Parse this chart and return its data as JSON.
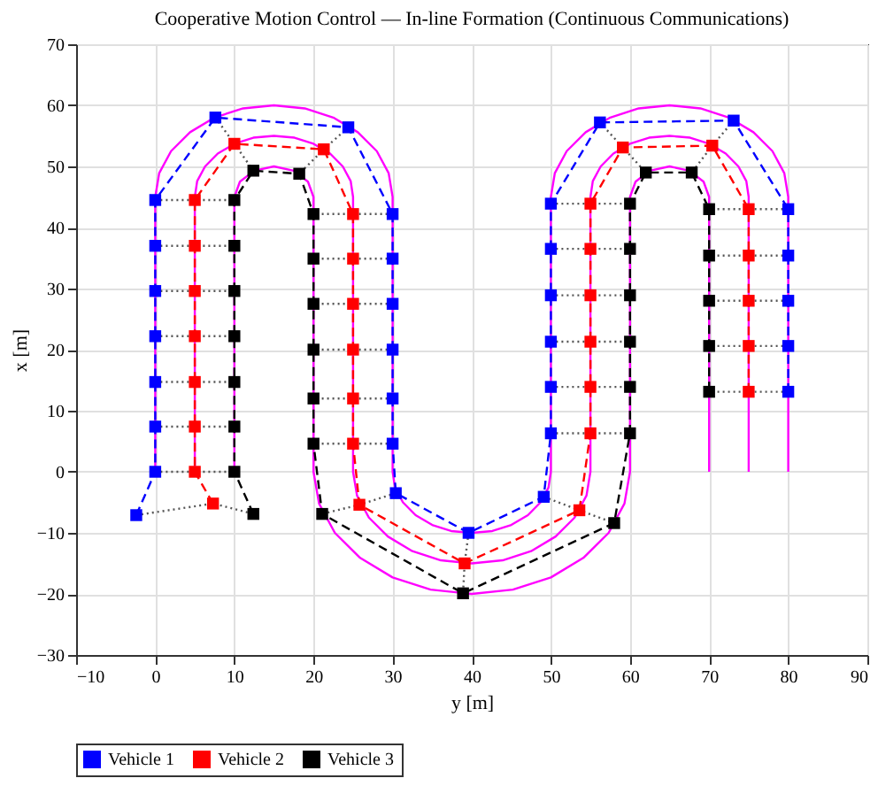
{
  "chart_data": {
    "type": "line",
    "title": "Cooperative Motion Control — In-line Formation (Continuous Communications)",
    "xlabel": "y [m]",
    "ylabel": "x [m]",
    "xlim": [
      -10,
      90
    ],
    "xticks": [
      -10,
      0,
      10,
      20,
      30,
      40,
      50,
      60,
      70,
      80,
      90
    ],
    "ylim": [
      -30,
      70
    ],
    "yticks": [
      -30,
      -20,
      -10,
      0,
      10,
      20,
      30,
      40,
      50,
      60,
      70
    ],
    "grid": true,
    "legend": "bottom",
    "series": [
      {
        "color": "#ff00ff",
        "line_style": "solid",
        "marker": "none",
        "x": [
          0,
          0,
          0.5,
          2,
          4.4,
          7.5,
          11.1,
          15,
          18.9,
          22.5,
          25.6,
          28,
          29.5,
          30,
          30,
          30.3,
          31.3,
          32.9,
          35,
          37.4,
          40,
          42.6,
          45,
          47.1,
          48.7,
          49.7,
          50,
          50,
          50.5,
          52,
          54.4,
          57.5,
          61.1,
          65,
          68.9,
          72.5,
          75.6,
          78,
          79.5,
          80,
          80
        ],
        "values": [
          0,
          45,
          48.9,
          52.5,
          55.6,
          58,
          59.5,
          60,
          59.5,
          58,
          55.6,
          52.5,
          48.9,
          45,
          0,
          -2.6,
          -5,
          -7.1,
          -8.7,
          -9.7,
          -10,
          -9.7,
          -8.7,
          -7.1,
          -5,
          -2.6,
          0,
          45,
          48.9,
          52.5,
          55.6,
          58,
          59.5,
          60,
          59.5,
          58,
          55.6,
          52.5,
          48.9,
          45,
          0
        ]
      },
      {
        "color": "#ff00ff",
        "line_style": "solid",
        "marker": "none",
        "x": [
          5,
          5,
          5.3,
          6.3,
          7.9,
          10,
          12.4,
          15,
          17.6,
          20,
          22.1,
          23.7,
          24.7,
          25,
          25,
          25.5,
          27,
          29.4,
          32.5,
          36.1,
          40,
          43.9,
          47.5,
          50.6,
          53,
          54.5,
          55,
          55,
          55.3,
          56.3,
          57.9,
          60,
          62.4,
          65,
          67.6,
          70,
          72.1,
          73.7,
          74.7,
          75,
          75
        ],
        "values": [
          0,
          45,
          47.6,
          50,
          52.1,
          53.7,
          54.7,
          55,
          54.7,
          53.7,
          52.1,
          50,
          47.6,
          45,
          0,
          -3.9,
          -7.5,
          -10.6,
          -13,
          -14.5,
          -15,
          -14.5,
          -13,
          -10.6,
          -7.5,
          -3.9,
          0,
          45,
          47.6,
          50,
          52.1,
          53.7,
          54.7,
          55,
          54.7,
          53.7,
          52.1,
          50,
          47.6,
          45,
          0
        ]
      },
      {
        "color": "#ff00ff",
        "line_style": "solid",
        "marker": "none",
        "x": [
          10,
          10,
          10.7,
          12.5,
          15,
          17.5,
          19.3,
          20,
          20,
          20.7,
          22.7,
          25.9,
          30,
          34.8,
          40,
          45.2,
          50,
          54.1,
          57.3,
          59.3,
          60,
          60,
          60.7,
          62.5,
          65,
          67.5,
          69.3,
          70,
          70
        ],
        "values": [
          0,
          45,
          47.5,
          49.3,
          50,
          49.3,
          47.5,
          45,
          0,
          -5.2,
          -10,
          -14.1,
          -17.3,
          -19.3,
          -20,
          -19.3,
          -17.3,
          -14.1,
          -10,
          -5.2,
          0,
          45,
          47.5,
          49.3,
          50,
          49.3,
          47.5,
          45,
          0
        ]
      },
      {
        "color": "#555555",
        "line_style": "dotted",
        "marker": "none",
        "x": [
          -2.4,
          7.3,
          12.4,
          null,
          0,
          5,
          10,
          null,
          0,
          5,
          10,
          null,
          0,
          5,
          10,
          null,
          0,
          5,
          10,
          null,
          0,
          5,
          10,
          null,
          0,
          5,
          10,
          null,
          0,
          5,
          10,
          null,
          7.6,
          10,
          12.4,
          null,
          24.4,
          21.3,
          18.2,
          null,
          30,
          25,
          20,
          null,
          30,
          25,
          20,
          null,
          30,
          25,
          20,
          null,
          30,
          25,
          20,
          null,
          30,
          25,
          20,
          null,
          30,
          25,
          20,
          null,
          30.4,
          25.8,
          21.1,
          null,
          39.6,
          39.1,
          38.9,
          null,
          49.1,
          53.6,
          58,
          null,
          50,
          55,
          60,
          null,
          50,
          55,
          60,
          null,
          50,
          55,
          60,
          null,
          50,
          55,
          60,
          null,
          50,
          55,
          60,
          null,
          50,
          55,
          60,
          null,
          56.2,
          59.1,
          62,
          null,
          73.1,
          70.4,
          67.8,
          null,
          80,
          75,
          70,
          null,
          80,
          75,
          70,
          null,
          80,
          75,
          70,
          null,
          80,
          75,
          70,
          null,
          80,
          75,
          70
        ],
        "values": [
          -7.1,
          -5.2,
          -6.9,
          null,
          0,
          0,
          0,
          null,
          7.4,
          7.4,
          7.4,
          null,
          14.7,
          14.7,
          14.7,
          null,
          22.2,
          22.2,
          22.2,
          null,
          29.6,
          29.6,
          29.6,
          null,
          37,
          37,
          37,
          null,
          44.5,
          44.5,
          44.5,
          null,
          58,
          53.7,
          49.3,
          null,
          56.4,
          52.8,
          48.8,
          null,
          42.2,
          42.2,
          42.2,
          null,
          34.9,
          34.9,
          34.9,
          null,
          27.5,
          27.5,
          27.5,
          null,
          20,
          20,
          20,
          null,
          12,
          12,
          12,
          null,
          4.6,
          4.6,
          4.6,
          null,
          -3.5,
          -5.4,
          -6.9,
          null,
          -10,
          -15,
          -19.9,
          null,
          -4.1,
          -6.3,
          -8.4,
          null,
          6.3,
          6.3,
          6.3,
          null,
          13.9,
          13.9,
          13.9,
          null,
          21.3,
          21.3,
          21.3,
          null,
          28.9,
          28.9,
          28.9,
          null,
          36.5,
          36.5,
          36.5,
          null,
          43.9,
          43.9,
          43.9,
          null,
          57.2,
          53.1,
          49,
          null,
          57.5,
          53.4,
          49,
          null,
          43,
          43,
          43,
          null,
          35.4,
          35.4,
          35.4,
          null,
          28,
          28,
          28,
          null,
          20.6,
          20.6,
          20.6,
          null,
          13.1,
          13.1,
          13.1
        ]
      },
      {
        "name": "Vehicle 1",
        "color": "#0000ff",
        "line_style": "dashed",
        "marker": "square",
        "x": [
          -2.4,
          0,
          0,
          0,
          0,
          0,
          0,
          0,
          7.6,
          24.4,
          30,
          30,
          30,
          30,
          30,
          30,
          30.4,
          39.6,
          49.1,
          50,
          50,
          50,
          50,
          50,
          50,
          56.2,
          73.1,
          80,
          80,
          80,
          80,
          80
        ],
        "values": [
          -7.1,
          0,
          7.4,
          14.7,
          22.2,
          29.6,
          37,
          44.5,
          58,
          56.4,
          42.2,
          34.9,
          27.5,
          20,
          12,
          4.6,
          -3.5,
          -10,
          -4.1,
          6.3,
          13.9,
          21.3,
          28.9,
          36.5,
          43.9,
          57.2,
          57.5,
          43,
          35.4,
          28,
          20.6,
          13.1
        ]
      },
      {
        "name": "Vehicle 2",
        "color": "#ff0000",
        "line_style": "dashed",
        "marker": "square",
        "x": [
          7.3,
          5,
          5,
          5,
          5,
          5,
          5,
          5,
          10,
          21.3,
          25,
          25,
          25,
          25,
          25,
          25,
          25.8,
          39.1,
          53.6,
          55,
          55,
          55,
          55,
          55,
          55,
          59.1,
          70.4,
          75,
          75,
          75,
          75,
          75
        ],
        "values": [
          -5.2,
          0,
          7.4,
          14.7,
          22.2,
          29.6,
          37,
          44.5,
          53.7,
          52.8,
          42.2,
          34.9,
          27.5,
          20,
          12,
          4.6,
          -5.4,
          -15,
          -6.3,
          6.3,
          13.9,
          21.3,
          28.9,
          36.5,
          43.9,
          53.1,
          53.4,
          43,
          35.4,
          28,
          20.6,
          13.1
        ]
      },
      {
        "name": "Vehicle 3",
        "color": "#000000",
        "line_style": "dashed",
        "marker": "square",
        "x": [
          12.4,
          10,
          10,
          10,
          10,
          10,
          10,
          10,
          12.4,
          18.2,
          20,
          20,
          20,
          20,
          20,
          20,
          21.1,
          38.9,
          58,
          60,
          60,
          60,
          60,
          60,
          60,
          62,
          67.8,
          70,
          70,
          70,
          70,
          70
        ],
        "values": [
          -6.9,
          0,
          7.4,
          14.7,
          22.2,
          29.6,
          37,
          44.5,
          49.3,
          48.8,
          42.2,
          34.9,
          27.5,
          20,
          12,
          4.6,
          -6.9,
          -19.9,
          -8.4,
          6.3,
          13.9,
          21.3,
          28.9,
          36.5,
          43.9,
          49,
          49,
          43,
          35.4,
          28,
          20.6,
          13.1
        ]
      }
    ]
  }
}
